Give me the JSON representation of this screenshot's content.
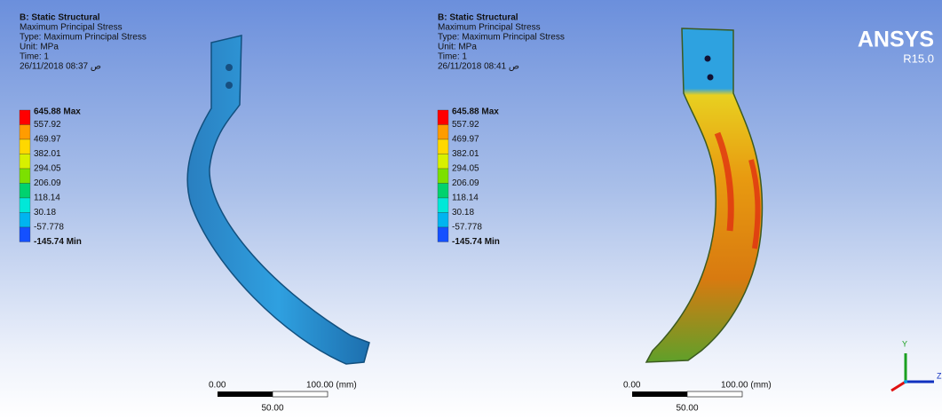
{
  "panels": [
    {
      "header": [
        "B: Static Structural",
        "Maximum Principal Stress",
        "Type: Maximum Principal Stress",
        "Unit: MPa",
        "Time: 1",
        "26/11/2018 08:37 ص"
      ],
      "legend": [
        "645.88 Max",
        "557.92",
        "469.97",
        "382.01",
        "294.05",
        "206.09",
        "118.14",
        "30.18",
        "-57.778",
        "-145.74 Min"
      ],
      "scale": {
        "start": "0.00",
        "end": "100.00 (mm)",
        "middle": "50.00"
      }
    },
    {
      "header": [
        "B: Static Structural",
        "Maximum Principal Stress",
        "Type: Maximum Principal Stress",
        "Unit: MPa",
        "Time: 1",
        "26/11/2018 08:41 ص"
      ],
      "legend": [
        "645.88 Max",
        "557.92",
        "469.97",
        "382.01",
        "294.05",
        "206.09",
        "118.14",
        "30.18",
        "-57.778",
        "-145.74 Min"
      ],
      "scale": {
        "start": "0.00",
        "end": "100.00 (mm)",
        "middle": "50.00"
      }
    }
  ],
  "legend_colors": [
    "#ff0000",
    "#ff9c00",
    "#ffd800",
    "#d8f000",
    "#7ce000",
    "#00d26e",
    "#00e8d8",
    "#00b4f0",
    "#1450ff"
  ],
  "logo": {
    "name": "ANSYS",
    "version": "R15.0"
  },
  "triad": {
    "y": "Y",
    "z": "Z"
  }
}
